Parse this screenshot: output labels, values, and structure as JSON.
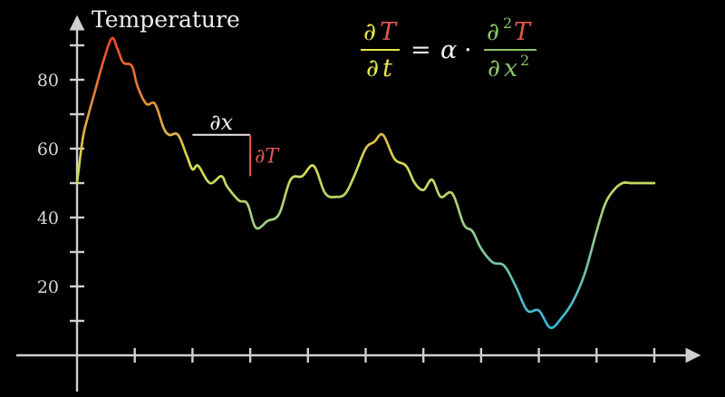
{
  "chart_data": {
    "type": "line",
    "title": "",
    "xlabel": "",
    "ylabel": "Temperature",
    "ylim": [
      0,
      100
    ],
    "xlim": [
      0,
      10
    ],
    "yticks": [
      20,
      40,
      60,
      80
    ],
    "xtick_count": 10,
    "grid": false,
    "x": [
      0,
      0.1,
      0.2,
      0.3,
      0.45,
      0.6,
      0.7,
      0.8,
      0.95,
      1.05,
      1.2,
      1.35,
      1.5,
      1.6,
      1.75,
      1.9,
      2.0,
      2.1,
      2.3,
      2.5,
      2.6,
      2.8,
      2.95,
      3.1,
      3.3,
      3.5,
      3.7,
      3.9,
      4.1,
      4.3,
      4.5,
      4.65,
      4.8,
      5.0,
      5.15,
      5.3,
      5.5,
      5.7,
      5.85,
      6.0,
      6.15,
      6.3,
      6.5,
      6.7,
      6.85,
      7.0,
      7.2,
      7.4,
      7.6,
      7.8,
      8.0,
      8.2,
      8.4,
      8.6,
      8.8,
      9.0,
      9.15,
      9.3,
      9.45,
      9.6,
      9.75,
      9.9,
      10.0
    ],
    "values": [
      50,
      63,
      70,
      76,
      85,
      92,
      89,
      85,
      84,
      78,
      73,
      73,
      66,
      64,
      64,
      58,
      54,
      55,
      50,
      52,
      49,
      45,
      44,
      37,
      39,
      41,
      51,
      52,
      55,
      47,
      46,
      47,
      52,
      60,
      62,
      64,
      57,
      55,
      50,
      48,
      51,
      46,
      47,
      38,
      36,
      31,
      27,
      26,
      20,
      13,
      13,
      8,
      11,
      16,
      24,
      36,
      44,
      48,
      50,
      50,
      50,
      50,
      50
    ],
    "series": [
      {
        "values_ref": "values"
      }
    ]
  },
  "equation": {
    "lhs_num_partial": "∂",
    "lhs_num_var": "T",
    "lhs_den_partial": "∂",
    "lhs_den_var": "t",
    "equals": "=",
    "coef": "α",
    "dot": "·",
    "rhs_num_partial": "∂",
    "rhs_num_power": "2",
    "rhs_num_var": "T",
    "rhs_den_partial": "∂",
    "rhs_den_var": "x",
    "rhs_den_power": "2"
  },
  "annotation": {
    "dx_label": "∂x",
    "dT_label": "∂T"
  },
  "colors": {
    "background": "#000000",
    "axis": "#cfcfcf",
    "T_color": "#e05a52",
    "t_color": "#e6e64a",
    "x_color": "#8cc36a",
    "hot": "#f04a2a",
    "mid": "#d8dc52",
    "cool": "#3ab8d8"
  }
}
